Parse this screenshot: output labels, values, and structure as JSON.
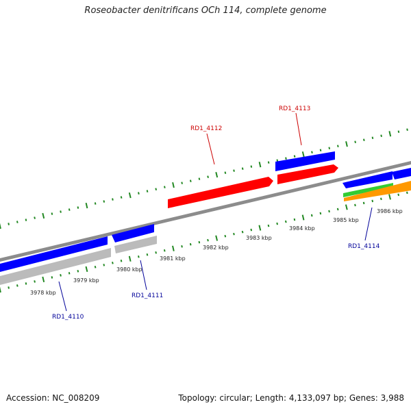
{
  "header": {
    "title": "Roseobacter denitrificans OCh 114, complete genome"
  },
  "footer": {
    "accession": "Accession: NC_008209",
    "summary": "Topology: circular; Length: 4,133,097 bp; Genes: 3,988"
  },
  "colors": {
    "forward_cds": "#ff0000",
    "reverse_cds": "#0000ff",
    "other_feature": "#bbbbbb",
    "green_feature": "#33cc33",
    "orange_feature": "#ff9900",
    "backbone": "#8c8c8c",
    "ticks": "#228822",
    "forward_label": "#cc0000",
    "reverse_label": "#000099"
  },
  "scale": {
    "kbp_labels": [
      "3978 kbp",
      "3979 kbp",
      "3980 kbp",
      "3981 kbp",
      "3982 kbp",
      "3983 kbp",
      "3984 kbp",
      "3985 kbp",
      "3986 kbp"
    ]
  },
  "genes": {
    "forward": [
      {
        "label": "RD1_4112"
      },
      {
        "label": "RD1_4113"
      }
    ],
    "reverse": [
      {
        "label": "RD1_4110"
      },
      {
        "label": "RD1_4111"
      },
      {
        "label": "RD1_4114"
      }
    ]
  }
}
